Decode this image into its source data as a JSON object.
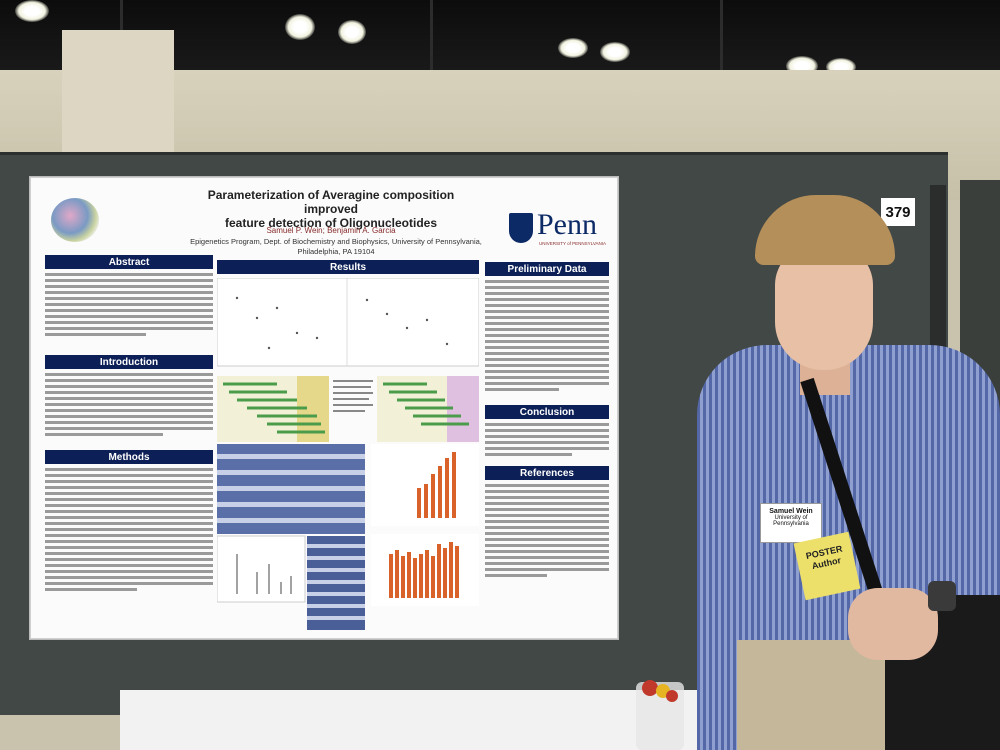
{
  "scene": {
    "booth_number": "379"
  },
  "poster": {
    "title_line1": "Parameterization of Averagine composition improved",
    "title_line2": "feature detection of Oligonucleotides",
    "authors": "Samuel P. Wein; Benjamin A. Garcia",
    "affiliation_line1": "Epigenetics Program, Dept. of Biochemistry and Biophysics, University of Pennsylvania,",
    "affiliation_line2": "Philadelphia, PA 19104",
    "logo_text": "Penn",
    "logo_subtext": "UNIVERSITY of PENNSYLVANIA",
    "sections": {
      "abstract": "Abstract",
      "introduction": "Introduction",
      "methods": "Methods",
      "results": "Results",
      "preliminary": "Preliminary Data",
      "conclusion": "Conclusion",
      "references": "References"
    },
    "colors": {
      "header_bg": "#0c1f56",
      "penn_blue": "#0b2a66",
      "penn_red": "#8a2b2b",
      "bar_orange": "#d9622b"
    }
  },
  "badge": {
    "name": "Samuel Wein",
    "org": "University of Pennsylvania"
  },
  "ribbon": {
    "line1": "POSTER",
    "line2": "Author"
  }
}
